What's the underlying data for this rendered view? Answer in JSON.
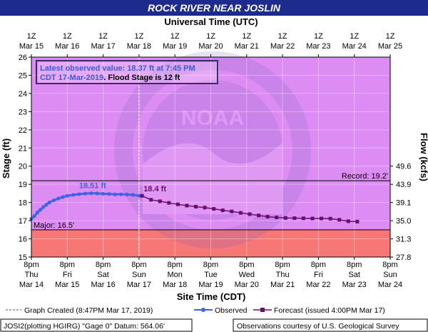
{
  "header": {
    "title": "ROCK RIVER NEAR JOSLIN",
    "top_axis_title": "Universal Time (UTC)",
    "bottom_axis_title": "Site Time (CDT)",
    "left_axis_title": "Stage (ft)",
    "right_axis_title": "Flow (kcfs)"
  },
  "colors": {
    "title_bar": "#1c2b8c",
    "plot_background": "#dc8cf3",
    "major_flood_band": "#f77777",
    "observed": "#3e63e6",
    "forecast": "#6a0e6e",
    "info_text": "#3a5ae0"
  },
  "info_box": {
    "line1": "Latest observed value: 18.37 ft at 7:45 PM",
    "line2_blue": "CDT 17-Mar-2019",
    "line2_black": ". Flood Stage is 12 ft"
  },
  "legend": {
    "graph_created": "Graph Created (8:47PM Mar 17, 2019)",
    "observed": "Observed",
    "forecast": "Forecast (issued 4:00PM Mar 17)"
  },
  "footer": {
    "left": "JOSI2(plotting HGIRG) \"Gage 0\" Datum: 564.06'",
    "right": "Observations courtesy of U.S. Geological Survey"
  },
  "chart_data": {
    "type": "line",
    "ylim": [
      15,
      26
    ],
    "y_ticks": [
      "15",
      "16",
      "17",
      "18",
      "19",
      "20",
      "21",
      "22",
      "23",
      "24",
      "25",
      "26"
    ],
    "flow_ticks": [
      {
        "stage": 15,
        "label": "27.8"
      },
      {
        "stage": 16,
        "label": "31.3"
      },
      {
        "stage": 17,
        "label": "35.0"
      },
      {
        "stage": 18,
        "label": "39.1"
      },
      {
        "stage": 19,
        "label": "43.9"
      },
      {
        "stage": 20,
        "label": "49.6"
      }
    ],
    "xlim_hours_after_mar14_8pm": [
      0,
      240
    ],
    "top_ticks": [
      {
        "line1": "1Z",
        "line2": "Mar 15"
      },
      {
        "line1": "1Z",
        "line2": "Mar 16"
      },
      {
        "line1": "1Z",
        "line2": "Mar 17"
      },
      {
        "line1": "1Z",
        "line2": "Mar 18"
      },
      {
        "line1": "1Z",
        "line2": "Mar 19"
      },
      {
        "line1": "1Z",
        "line2": "Mar 20"
      },
      {
        "line1": "1Z",
        "line2": "Mar 21"
      },
      {
        "line1": "1Z",
        "line2": "Mar 22"
      },
      {
        "line1": "1Z",
        "line2": "Mar 23"
      },
      {
        "line1": "1Z",
        "line2": "Mar 24"
      },
      {
        "line1": "1Z",
        "line2": "Mar 25"
      }
    ],
    "bottom_ticks": [
      {
        "time": "8pm",
        "day": "Thu",
        "date": "Mar 14"
      },
      {
        "time": "8pm",
        "day": "Fri",
        "date": "Mar 15"
      },
      {
        "time": "8pm",
        "day": "Sat",
        "date": "Mar 16"
      },
      {
        "time": "8pm",
        "day": "Sun",
        "date": "Mar 17"
      },
      {
        "time": "8pm",
        "day": "Mon",
        "date": "Mar 18"
      },
      {
        "time": "8pm",
        "day": "Tue",
        "date": "Mar 19"
      },
      {
        "time": "8pm",
        "day": "Wed",
        "date": "Mar 20"
      },
      {
        "time": "8pm",
        "day": "Thu",
        "date": "Mar 21"
      },
      {
        "time": "8pm",
        "day": "Fri",
        "date": "Mar 22"
      },
      {
        "time": "8pm",
        "day": "Sat",
        "date": "Mar 23"
      },
      {
        "time": "8pm",
        "day": "Sun",
        "date": "Mar 24"
      }
    ],
    "record_stage": 19.2,
    "record_label": "Record: 19.2'",
    "major_stage": 16.5,
    "major_label": "Major: 16.5'",
    "graph_created_hour": 72,
    "observed": {
      "name": "Observed",
      "x_hours": [
        0,
        2,
        4,
        6,
        8,
        10,
        12,
        15,
        18,
        21,
        24,
        28,
        32,
        36,
        40,
        44,
        48,
        52,
        56,
        60,
        64,
        68,
        72
      ],
      "y": [
        17.1,
        17.25,
        17.45,
        17.6,
        17.75,
        17.88,
        18.0,
        18.12,
        18.22,
        18.3,
        18.37,
        18.42,
        18.46,
        18.49,
        18.51,
        18.5,
        18.48,
        18.47,
        18.45,
        18.45,
        18.44,
        18.42,
        18.37
      ],
      "peak_label": "18.51 ft"
    },
    "forecast": {
      "name": "Forecast (issued 4:00PM Mar 17)",
      "x_hours": [
        74,
        80,
        86,
        92,
        98,
        104,
        110,
        116,
        122,
        128,
        134,
        140,
        146,
        152,
        158,
        164,
        170,
        176,
        182,
        188,
        194,
        200,
        206,
        212,
        218
      ],
      "y": [
        18.37,
        18.15,
        18.07,
        17.98,
        17.9,
        17.83,
        17.77,
        17.72,
        17.65,
        17.57,
        17.51,
        17.43,
        17.36,
        17.29,
        17.22,
        17.18,
        17.15,
        17.14,
        17.13,
        17.12,
        17.12,
        17.11,
        17.05,
        16.97,
        16.95
      ],
      "start_label": "18.4 ft"
    }
  }
}
